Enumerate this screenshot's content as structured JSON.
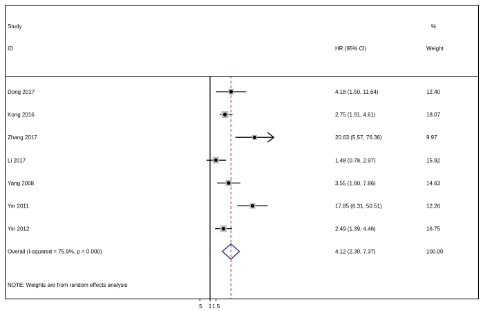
{
  "header": {
    "study": "Study",
    "id": "ID",
    "hr_ci": "HR (95% CI)",
    "percent": "%",
    "weight": "Weight"
  },
  "note": "NOTE: Weights are from random effects analysis",
  "colors": {
    "line": "#000000",
    "box": "#bdbdbd",
    "ref_line": "#a0302c",
    "diamond": "#1a1a7a"
  },
  "chart_data": {
    "type": "forest",
    "xaxis": {
      "ticks": [
        0.5,
        1,
        1.5
      ],
      "tick_labels": [
        ".5",
        "1",
        "1.5"
      ],
      "null_value": 1
    },
    "pooled_line_value": 4.12,
    "studies": [
      {
        "label": "Dong 2017",
        "hr": 4.18,
        "lower": 1.5,
        "upper": 11.64,
        "hr_text": "4.18 (1.50, 11.64)",
        "weight": 12.4,
        "weight_text": "12.40",
        "arrow_right": false
      },
      {
        "label": "Kong 2016",
        "hr": 2.75,
        "lower": 1.91,
        "upper": 4.61,
        "hr_text": "2.75 (1.91, 4.61)",
        "weight": 18.07,
        "weight_text": "18.07",
        "arrow_right": false
      },
      {
        "label": "Zhang 2017",
        "hr": 20.63,
        "lower": 5.57,
        "upper": 76.36,
        "hr_text": "20.63 (5.57, 76.36)",
        "weight": 9.97,
        "weight_text": "9.97",
        "arrow_right": true
      },
      {
        "label": "Li 2017",
        "hr": 1.48,
        "lower": 0.78,
        "upper": 2.97,
        "hr_text": "1.48 (0.78, 2.97)",
        "weight": 15.92,
        "weight_text": "15.92",
        "arrow_right": false
      },
      {
        "label": "Yang 2008",
        "hr": 3.55,
        "lower": 1.6,
        "upper": 7.86,
        "hr_text": "3.55 (1.60, 7.86)",
        "weight": 14.63,
        "weight_text": "14.63",
        "arrow_right": false
      },
      {
        "label": "Yin 2011",
        "hr": 17.85,
        "lower": 6.31,
        "upper": 50.51,
        "hr_text": "17.85 (6.31, 50.51)",
        "weight": 12.26,
        "weight_text": "12.26",
        "arrow_right": false
      },
      {
        "label": "Yin 2012",
        "hr": 2.49,
        "lower": 1.39,
        "upper": 4.46,
        "hr_text": "2.49 (1.39, 4.46)",
        "weight": 16.75,
        "weight_text": "16.75",
        "arrow_right": false
      }
    ],
    "overall": {
      "label": "Overall  (I-squared = 75.9%, p = 0.000)",
      "hr": 4.12,
      "lower": 2.3,
      "upper": 7.37,
      "hr_text": "4.12 (2.30, 7.37)",
      "weight": 100.0,
      "weight_text": "100.00"
    }
  }
}
